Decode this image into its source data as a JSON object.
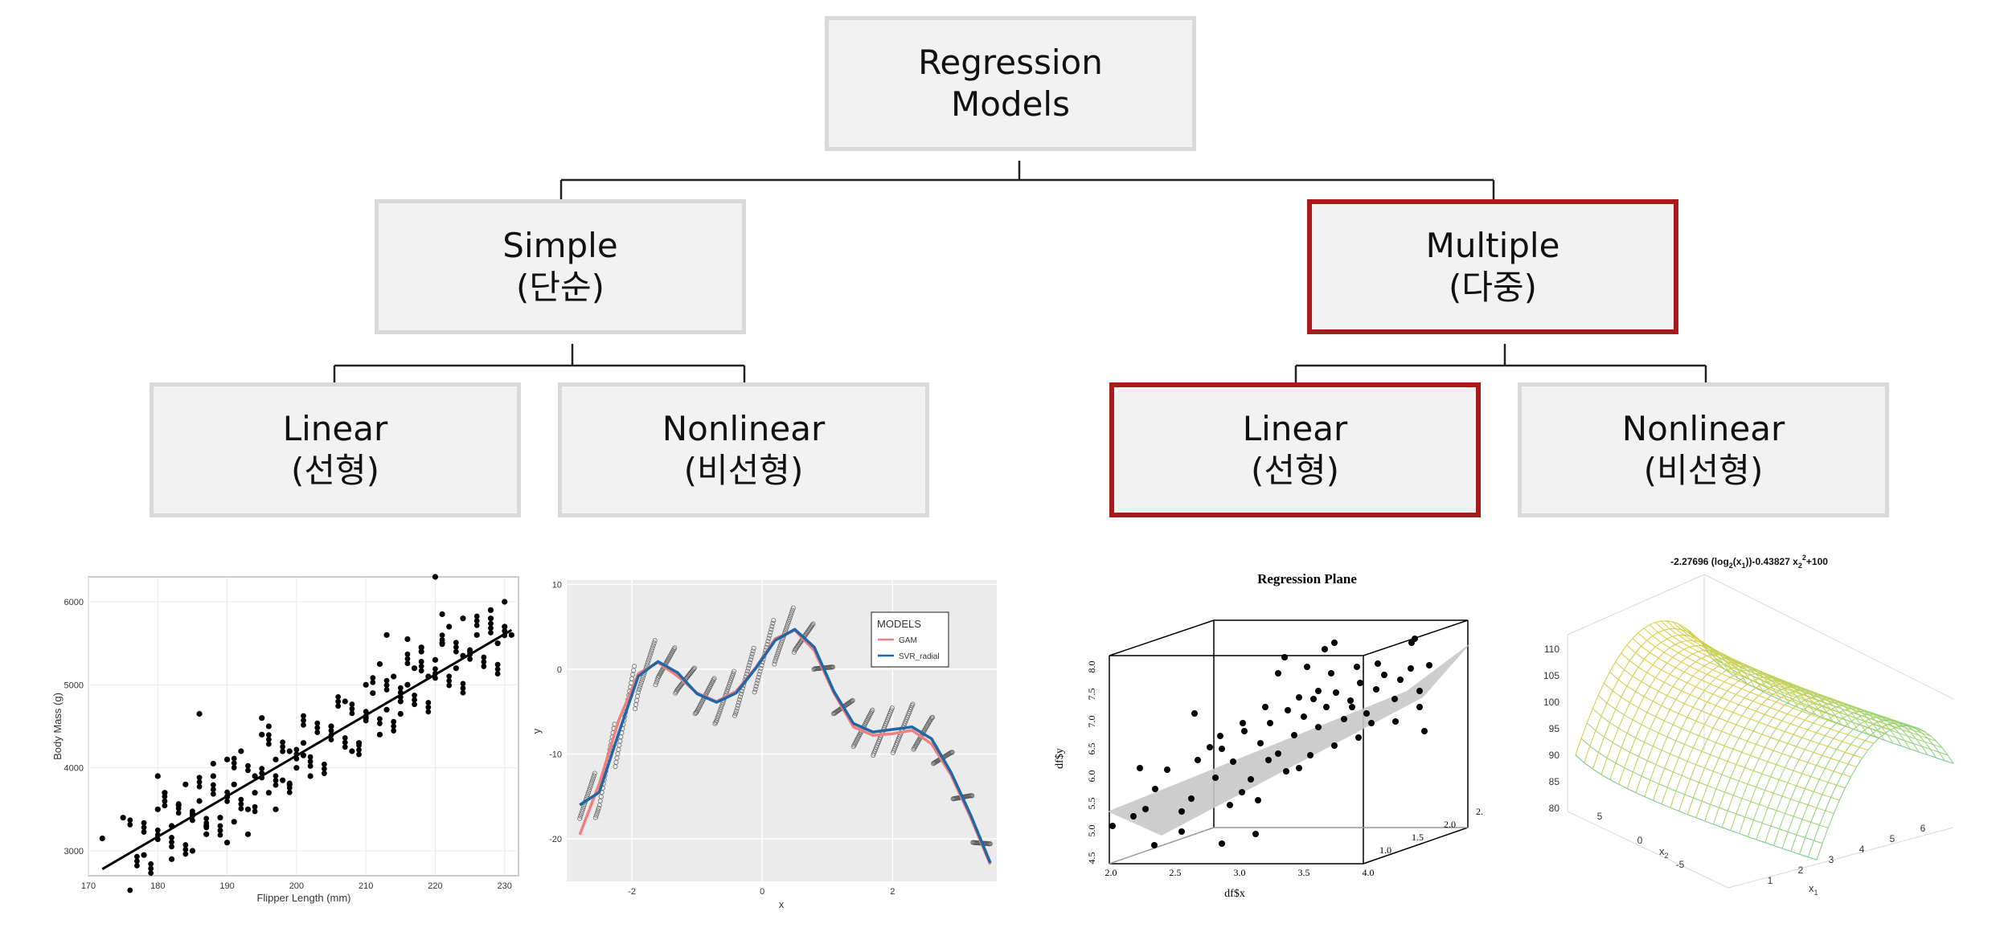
{
  "tree": {
    "root": {
      "line1": "Regression",
      "line2": "Models"
    },
    "simple": {
      "line1": "Simple",
      "line2": "(단순)"
    },
    "multiple": {
      "line1": "Multiple",
      "line2": "(다중)"
    },
    "simple_linear": {
      "line1": "Linear",
      "line2": "(선형)"
    },
    "simple_nonlinear": {
      "line1": "Nonlinear",
      "line2": "(비선형)"
    },
    "multiple_linear": {
      "line1": "Linear",
      "line2": "(선형)"
    },
    "multiple_nonlinear": {
      "line1": "Nonlinear",
      "line2": "(비선형)"
    }
  },
  "colors": {
    "highlight": "#a91b1b",
    "box_fill": "#f2f2f2",
    "box_border": "#d9d9d9"
  },
  "chart_data": [
    {
      "type": "scatter",
      "xlabel": "Flipper Length (mm)",
      "ylabel": "Body Mass (g)",
      "xlim": [
        170,
        232
      ],
      "ylim": [
        2700,
        6300
      ],
      "x_ticks": [
        "170",
        "180",
        "190",
        "200",
        "210",
        "220",
        "230"
      ],
      "y_ticks": [
        "3000",
        "4000",
        "5000",
        "6000"
      ],
      "fit_line": {
        "x": [
          172,
          231
        ],
        "y": [
          2780,
          5660
        ]
      },
      "points": {
        "x": [
          172,
          175,
          178,
          180,
          181,
          182,
          183,
          184,
          185,
          186,
          187,
          188,
          189,
          190,
          190,
          191,
          192,
          193,
          194,
          195,
          196,
          197,
          198,
          199,
          200,
          201,
          202,
          205,
          207,
          208,
          210,
          211,
          212,
          213,
          214,
          215,
          216,
          217,
          218,
          219,
          220,
          221,
          222,
          223,
          224,
          225,
          226,
          228,
          229,
          230,
          230,
          231,
          185,
          187,
          190,
          193,
          195,
          197,
          180,
          182,
          186,
          188,
          191,
          194,
          196,
          199,
          201,
          209,
          212,
          215,
          218,
          221,
          224,
          228,
          216,
          220,
          210,
          213
        ],
        "y": [
          3150,
          3400,
          2950,
          3500,
          3700,
          3300,
          3550,
          3800,
          3450,
          3600,
          3200,
          3900,
          3400,
          3650,
          3100,
          3800,
          4200,
          3500,
          3900,
          4600,
          3700,
          4100,
          3850,
          4200,
          4000,
          4300,
          3900,
          4500,
          4800,
          4200,
          4600,
          4900,
          4400,
          4700,
          5100,
          4800,
          5000,
          5200,
          5400,
          5100,
          5300,
          5500,
          5700,
          5200,
          5800,
          5400,
          5600,
          5900,
          5500,
          5700,
          6000,
          5600,
          3000,
          3300,
          4100,
          3200,
          4400,
          3500,
          3900,
          2900,
          4650,
          4050,
          3350,
          3700,
          4500,
          3800,
          4150,
          4300,
          5250,
          4650,
          5450,
          5850,
          5350,
          5800,
          5550,
          6300,
          5000,
          5600
        ]
      }
    },
    {
      "type": "line",
      "xlabel": "x",
      "ylabel": "y",
      "xlim": [
        -3.0,
        3.6
      ],
      "ylim": [
        -25,
        10.5
      ],
      "x_ticks": [
        "-2",
        "0",
        "2"
      ],
      "y_ticks": [
        "10",
        "0",
        "-10",
        "-20"
      ],
      "legend_title": "MODELS",
      "legend_position": "top-right",
      "series": [
        {
          "name": "GAM",
          "color": "#f08080",
          "x": [
            -2.8,
            -2.5,
            -2.2,
            -1.9,
            -1.6,
            -1.3,
            -1.0,
            -0.7,
            -0.4,
            -0.1,
            0.2,
            0.5,
            0.8,
            1.1,
            1.4,
            1.7,
            2.0,
            2.3,
            2.6,
            2.9,
            3.2,
            3.5
          ],
          "y": [
            -19.5,
            -13.5,
            -6,
            -0.5,
            0.8,
            -0.8,
            -2.8,
            -3.8,
            -2.6,
            0.2,
            3.6,
            4.6,
            2.2,
            -2.8,
            -6.8,
            -7.8,
            -7.6,
            -7.2,
            -8.8,
            -12.5,
            -17.5,
            -23
          ]
        },
        {
          "name": "SVR_radial",
          "color": "#1f67a8",
          "x": [
            -2.8,
            -2.5,
            -2.2,
            -1.9,
            -1.6,
            -1.3,
            -1.0,
            -0.7,
            -0.4,
            -0.1,
            0.2,
            0.5,
            0.8,
            1.1,
            1.4,
            1.7,
            2.0,
            2.3,
            2.6,
            2.9,
            3.2,
            3.5
          ],
          "y": [
            -16,
            -14.5,
            -7.5,
            -0.8,
            0.9,
            -0.4,
            -2.9,
            -3.9,
            -2.8,
            0.1,
            3.4,
            4.7,
            2.6,
            -2.6,
            -6.4,
            -7.4,
            -7.1,
            -6.8,
            -8.2,
            -12.2,
            -17.2,
            -22.8
          ]
        }
      ]
    },
    {
      "type": "scatter",
      "title": "Regression Plane",
      "xlabel": "df$x",
      "ylabel": "df$y",
      "x_ticks": [
        "2.0",
        "2.5",
        "3.0",
        "3.5",
        "4.0"
      ],
      "y_ticks": [
        "4.5",
        "5.0",
        "5.5",
        "6.0",
        "6.5",
        "7.0",
        "7.5",
        "8.0"
      ],
      "z_ticks": [
        "1.0",
        "1.5",
        "2.0",
        "2."
      ]
    },
    {
      "type": "area",
      "title": "-2.27696 (log2(x1))-0.43827 x2^2+100",
      "z_ticks": [
        "80",
        "85",
        "90",
        "95",
        "100",
        "105",
        "110"
      ],
      "x1_ticks": [
        "1",
        "2",
        "3",
        "4",
        "5",
        "6"
      ],
      "x2_ticks": [
        "5",
        "0",
        "-5"
      ],
      "x1_label": "x1",
      "x2_label": "x2"
    }
  ]
}
